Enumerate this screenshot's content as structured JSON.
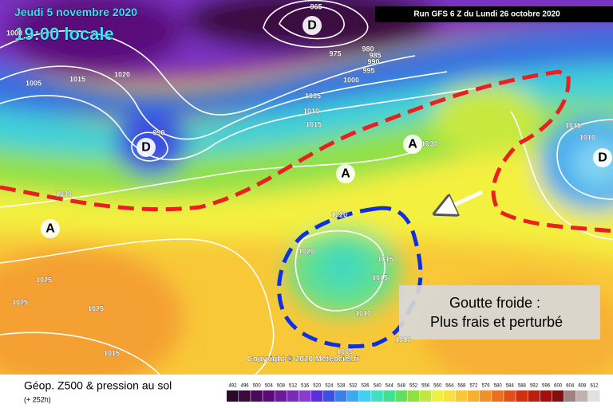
{
  "header": {
    "date": "Jeudi 5 novembre 2020",
    "time": "19:00 locale",
    "run": "Run GFS 6 Z du Lundi 26 octobre 2020"
  },
  "pressure_labels": [
    "965",
    "975",
    "980",
    "985",
    "990",
    "995",
    "1000",
    "1005",
    "1010",
    "1015",
    "1020",
    "1015",
    "1005",
    "1000",
    "990",
    "1030",
    "1030",
    "1015",
    "1010",
    "1025",
    "1025",
    "1025",
    "1015",
    "1020",
    "1015",
    "1015",
    "1010",
    "1010",
    "1005",
    "1020"
  ],
  "systems": [
    "D",
    "D",
    "D",
    "A",
    "A",
    "A"
  ],
  "annotation": {
    "line1": "Goutte froide :",
    "line2": "Plus frais et perturbé"
  },
  "copyright": "Copyright © 2020 Meteociel.fr",
  "footer": {
    "title": "Géop. Z500 & pression au sol",
    "lead": "(+ 252h)"
  },
  "color_scale": {
    "labels": [
      492,
      496,
      500,
      504,
      508,
      512,
      516,
      520,
      524,
      528,
      532,
      536,
      540,
      544,
      548,
      552,
      556,
      560,
      564,
      568,
      572,
      576,
      580,
      584,
      588,
      592,
      596,
      600,
      604,
      608,
      612
    ],
    "colors": [
      "#2a0a2a",
      "#3a0a3a",
      "#4a0a5a",
      "#5a0a7a",
      "#6a1a9a",
      "#7a2ab8",
      "#8a3ad0",
      "#5a30d8",
      "#3a50e0",
      "#3a80e8",
      "#40a8f0",
      "#40d0f0",
      "#40e0c0",
      "#40e090",
      "#60e060",
      "#90e040",
      "#c0e840",
      "#f0f040",
      "#f8e040",
      "#f8c838",
      "#f8b030",
      "#f09028",
      "#e87020",
      "#e05018",
      "#d03010",
      "#b82010",
      "#a01010",
      "#801010",
      "#a08080",
      "#c0b0b0",
      "#e0e0e0"
    ]
  }
}
